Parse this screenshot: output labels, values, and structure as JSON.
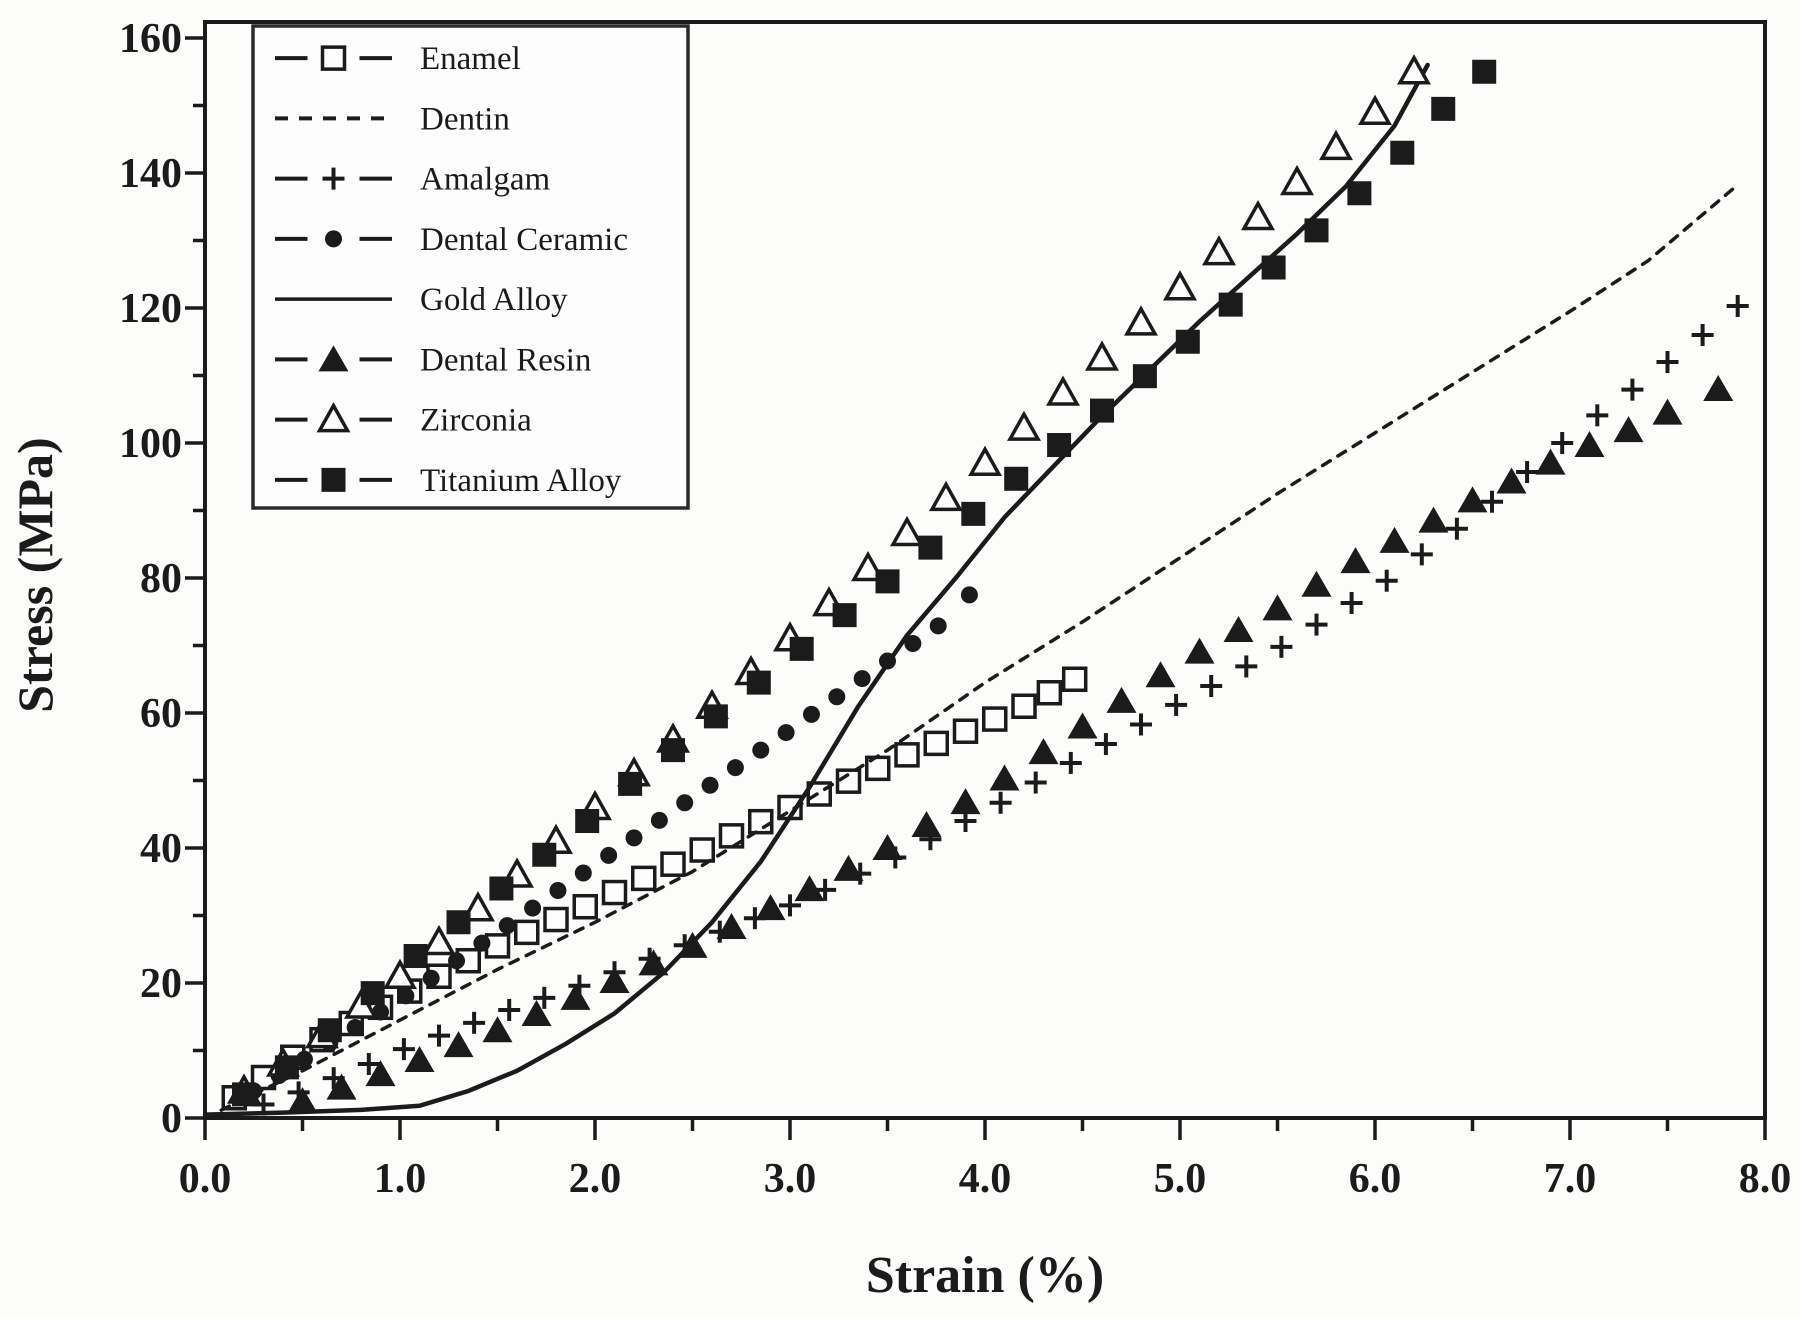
{
  "figure": {
    "background": "#fcfcfb",
    "ink_color": "#1b1b1b",
    "frame": "full box, left/bottom axes with outward ticks"
  },
  "chart_data": {
    "type": "scatter",
    "title": "",
    "xlabel": "Strain (%)",
    "ylabel": "Stress (MPa)",
    "xlim": [
      0,
      8
    ],
    "ylim": [
      0,
      160
    ],
    "x_tick_values": [
      0,
      1,
      2,
      3,
      4,
      5,
      6,
      7,
      8
    ],
    "x_tick_labels": [
      "0.0",
      "1.0",
      "2.0",
      "3.0",
      "4.0",
      "5.0",
      "6.0",
      "7.0",
      "8.0"
    ],
    "x_minor_step": 0.5,
    "y_tick_values": [
      0,
      20,
      40,
      60,
      80,
      100,
      120,
      140,
      160
    ],
    "y_tick_labels": [
      "0",
      "20",
      "40",
      "60",
      "80",
      "100",
      "120",
      "140",
      "160"
    ],
    "y_minor_step": 10,
    "grid": false,
    "legend_position": "top-left",
    "series": [
      {
        "name": "Enamel",
        "marker": "open-square",
        "line": "none",
        "legend_glyph": "dash-marker-dash",
        "points": [
          [
            0.15,
            3
          ],
          [
            0.3,
            6
          ],
          [
            0.45,
            9
          ],
          [
            0.6,
            11.6
          ],
          [
            0.75,
            14
          ],
          [
            0.9,
            16.4
          ],
          [
            1.05,
            18.8
          ],
          [
            1.2,
            21
          ],
          [
            1.35,
            23.3
          ],
          [
            1.5,
            25.5
          ],
          [
            1.65,
            27.5
          ],
          [
            1.8,
            29.4
          ],
          [
            1.95,
            31.3
          ],
          [
            2.1,
            33.4
          ],
          [
            2.25,
            35.5
          ],
          [
            2.4,
            37.6
          ],
          [
            2.55,
            39.7
          ],
          [
            2.7,
            41.8
          ],
          [
            2.85,
            43.9
          ],
          [
            3.0,
            46
          ],
          [
            3.15,
            48
          ],
          [
            3.3,
            49.9
          ],
          [
            3.45,
            51.8
          ],
          [
            3.6,
            53.8
          ],
          [
            3.75,
            55.5
          ],
          [
            3.9,
            57.3
          ],
          [
            4.05,
            59.1
          ],
          [
            4.2,
            61
          ],
          [
            4.33,
            63
          ],
          [
            4.46,
            65
          ]
        ]
      },
      {
        "name": "Dentin",
        "marker": "none",
        "line": "dashed",
        "legend_glyph": "short-dashes",
        "points": [
          [
            0,
            0
          ],
          [
            0.5,
            7
          ],
          [
            1,
            14.5
          ],
          [
            1.5,
            22
          ],
          [
            2,
            29
          ],
          [
            2.5,
            36.5
          ],
          [
            3,
            45.5
          ],
          [
            3.5,
            54.5
          ],
          [
            4,
            64.5
          ],
          [
            4.5,
            73.5
          ],
          [
            5,
            83
          ],
          [
            5.5,
            92.5
          ],
          [
            6,
            101.5
          ],
          [
            6.5,
            110.5
          ],
          [
            7,
            119.5
          ],
          [
            7.4,
            127
          ],
          [
            7.85,
            138
          ]
        ]
      },
      {
        "name": "Amalgam",
        "marker": "plus",
        "line": "none",
        "legend_glyph": "dash-marker-dash",
        "points": [
          [
            0.3,
            2
          ],
          [
            0.48,
            3.8
          ],
          [
            0.66,
            5.9
          ],
          [
            0.84,
            8
          ],
          [
            1.02,
            10.2
          ],
          [
            1.2,
            12.2
          ],
          [
            1.38,
            14.1
          ],
          [
            1.56,
            16
          ],
          [
            1.74,
            17.8
          ],
          [
            1.92,
            19.6
          ],
          [
            2.1,
            21.6
          ],
          [
            2.28,
            23.6
          ],
          [
            2.46,
            25.6
          ],
          [
            2.64,
            27.6
          ],
          [
            2.82,
            29.6
          ],
          [
            3.0,
            31.5
          ],
          [
            3.18,
            33.8
          ],
          [
            3.36,
            36.2
          ],
          [
            3.54,
            38.6
          ],
          [
            3.72,
            41.3
          ],
          [
            3.9,
            44
          ],
          [
            4.08,
            46.7
          ],
          [
            4.26,
            49.7
          ],
          [
            4.44,
            52.6
          ],
          [
            4.62,
            55.4
          ],
          [
            4.8,
            58.3
          ],
          [
            4.98,
            61.2
          ],
          [
            5.16,
            64
          ],
          [
            5.34,
            66.9
          ],
          [
            5.52,
            69.8
          ],
          [
            5.7,
            73.1
          ],
          [
            5.88,
            76.3
          ],
          [
            6.06,
            79.6
          ],
          [
            6.24,
            83.5
          ],
          [
            6.42,
            87.3
          ],
          [
            6.6,
            91.3
          ],
          [
            6.78,
            95.7
          ],
          [
            6.96,
            100
          ],
          [
            7.14,
            104.1
          ],
          [
            7.32,
            107.9
          ],
          [
            7.5,
            112
          ],
          [
            7.68,
            116
          ],
          [
            7.86,
            120.3
          ]
        ]
      },
      {
        "name": "Dental Ceramic",
        "marker": "filled-circle",
        "line": "none",
        "legend_glyph": "dash-marker-dash",
        "points": [
          [
            0.25,
            4
          ],
          [
            0.38,
            6.3
          ],
          [
            0.51,
            8.7
          ],
          [
            0.64,
            11.1
          ],
          [
            0.77,
            13.4
          ],
          [
            0.9,
            15.7
          ],
          [
            1.03,
            18.1
          ],
          [
            1.16,
            20.7
          ],
          [
            1.29,
            23.3
          ],
          [
            1.42,
            25.9
          ],
          [
            1.55,
            28.5
          ],
          [
            1.68,
            31.1
          ],
          [
            1.81,
            33.7
          ],
          [
            1.94,
            36.3
          ],
          [
            2.07,
            38.9
          ],
          [
            2.2,
            41.5
          ],
          [
            2.33,
            44.1
          ],
          [
            2.46,
            46.7
          ],
          [
            2.59,
            49.3
          ],
          [
            2.72,
            51.9
          ],
          [
            2.85,
            54.5
          ],
          [
            2.98,
            57.1
          ],
          [
            3.11,
            59.8
          ],
          [
            3.24,
            62.4
          ],
          [
            3.37,
            65.1
          ],
          [
            3.5,
            67.7
          ],
          [
            3.63,
            70.3
          ],
          [
            3.76,
            72.9
          ],
          [
            3.92,
            77.5
          ]
        ]
      },
      {
        "name": "Gold Alloy",
        "marker": "none",
        "line": "solid",
        "legend_glyph": "solid-line",
        "points": [
          [
            0,
            0.5
          ],
          [
            0.4,
            0.8
          ],
          [
            0.8,
            1.2
          ],
          [
            1.1,
            1.8
          ],
          [
            1.35,
            4
          ],
          [
            1.6,
            7
          ],
          [
            1.85,
            11
          ],
          [
            2.1,
            15.5
          ],
          [
            2.35,
            21.5
          ],
          [
            2.6,
            29
          ],
          [
            2.85,
            38
          ],
          [
            3.1,
            49
          ],
          [
            3.35,
            61
          ],
          [
            3.6,
            71.5
          ],
          [
            3.85,
            80
          ],
          [
            4.1,
            89
          ],
          [
            4.35,
            96.5
          ],
          [
            4.6,
            104
          ],
          [
            4.85,
            111
          ],
          [
            5.1,
            118
          ],
          [
            5.35,
            124.5
          ],
          [
            5.6,
            131
          ],
          [
            5.85,
            138
          ],
          [
            6.1,
            147
          ],
          [
            6.27,
            156
          ]
        ]
      },
      {
        "name": "Dental Resin",
        "marker": "filled-triangle",
        "line": "none",
        "legend_glyph": "dash-marker-dash",
        "points": [
          [
            0.5,
            2.5
          ],
          [
            0.7,
            4.5
          ],
          [
            0.9,
            6.5
          ],
          [
            1.1,
            8.6
          ],
          [
            1.3,
            10.8
          ],
          [
            1.5,
            13
          ],
          [
            1.7,
            15.4
          ],
          [
            1.9,
            17.8
          ],
          [
            2.1,
            20.3
          ],
          [
            2.3,
            22.9
          ],
          [
            2.5,
            25.5
          ],
          [
            2.7,
            28.3
          ],
          [
            2.9,
            31.1
          ],
          [
            3.1,
            33.9
          ],
          [
            3.3,
            36.9
          ],
          [
            3.5,
            40
          ],
          [
            3.7,
            43.4
          ],
          [
            3.9,
            46.8
          ],
          [
            4.1,
            50.3
          ],
          [
            4.3,
            54.2
          ],
          [
            4.5,
            58
          ],
          [
            4.7,
            61.8
          ],
          [
            4.9,
            65.6
          ],
          [
            5.1,
            69.1
          ],
          [
            5.3,
            72.3
          ],
          [
            5.5,
            75.5
          ],
          [
            5.7,
            79
          ],
          [
            5.9,
            82.5
          ],
          [
            6.1,
            85.5
          ],
          [
            6.3,
            88.5
          ],
          [
            6.5,
            91.5
          ],
          [
            6.7,
            94.3
          ],
          [
            6.9,
            97.1
          ],
          [
            7.1,
            99.7
          ],
          [
            7.3,
            101.9
          ],
          [
            7.5,
            104.5
          ],
          [
            7.76,
            108
          ]
        ]
      },
      {
        "name": "Zirconia",
        "marker": "open-triangle",
        "line": "none",
        "legend_glyph": "dash-marker-dash",
        "points": [
          [
            0.2,
            4
          ],
          [
            0.4,
            8
          ],
          [
            0.6,
            12.2
          ],
          [
            0.8,
            16.6
          ],
          [
            1.0,
            21
          ],
          [
            1.2,
            26
          ],
          [
            1.4,
            31
          ],
          [
            1.6,
            36
          ],
          [
            1.8,
            41
          ],
          [
            2.0,
            46
          ],
          [
            2.2,
            51
          ],
          [
            2.4,
            56
          ],
          [
            2.6,
            61
          ],
          [
            2.8,
            66
          ],
          [
            3.0,
            71
          ],
          [
            3.2,
            76.2
          ],
          [
            3.4,
            81.4
          ],
          [
            3.6,
            86.6
          ],
          [
            3.8,
            91.8
          ],
          [
            4.0,
            97
          ],
          [
            4.2,
            102.2
          ],
          [
            4.4,
            107.4
          ],
          [
            4.6,
            112.6
          ],
          [
            4.8,
            117.8
          ],
          [
            5.0,
            123
          ],
          [
            5.2,
            128.2
          ],
          [
            5.4,
            133.4
          ],
          [
            5.6,
            138.6
          ],
          [
            5.8,
            143.8
          ],
          [
            6.0,
            149
          ],
          [
            6.2,
            155
          ]
        ]
      },
      {
        "name": "Titanium Alloy",
        "marker": "filled-square",
        "line": "none",
        "legend_glyph": "dash-marker-dash",
        "points": [
          [
            0.2,
            3.5
          ],
          [
            0.42,
            7.5
          ],
          [
            0.64,
            13
          ],
          [
            0.86,
            18.5
          ],
          [
            1.08,
            24
          ],
          [
            1.3,
            29
          ],
          [
            1.52,
            34
          ],
          [
            1.74,
            39
          ],
          [
            1.96,
            44
          ],
          [
            2.18,
            49.5
          ],
          [
            2.4,
            54.5
          ],
          [
            2.62,
            59.5
          ],
          [
            2.84,
            64.5
          ],
          [
            3.06,
            69.5
          ],
          [
            3.28,
            74.5
          ],
          [
            3.5,
            79.5
          ],
          [
            3.72,
            84.5
          ],
          [
            3.94,
            89.5
          ],
          [
            4.16,
            94.7
          ],
          [
            4.38,
            99.7
          ],
          [
            4.6,
            104.8
          ],
          [
            4.82,
            109.9
          ],
          [
            5.04,
            115
          ],
          [
            5.26,
            120.5
          ],
          [
            5.48,
            126
          ],
          [
            5.7,
            131.5
          ],
          [
            5.92,
            137
          ],
          [
            6.14,
            143
          ],
          [
            6.35,
            149.5
          ],
          [
            6.56,
            155
          ]
        ]
      }
    ],
    "legend_order": [
      "Enamel",
      "Dentin",
      "Amalgam",
      "Dental Ceramic",
      "Gold Alloy",
      "Dental Resin",
      "Zirconia",
      "Titanium Alloy"
    ]
  }
}
